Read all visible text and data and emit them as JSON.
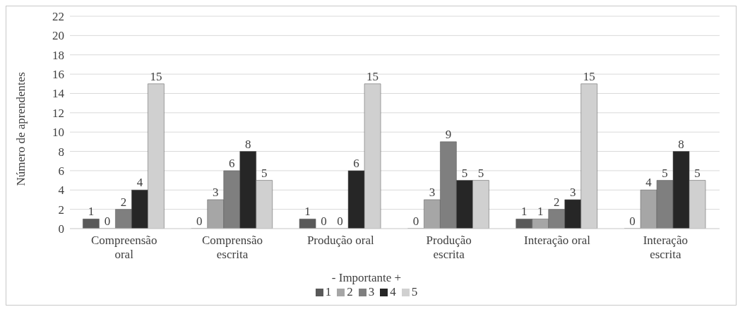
{
  "chart_data": {
    "type": "bar",
    "ylabel": "Número de aprendentes",
    "legend_title": "- Importante +",
    "categories": [
      "Compreensão oral",
      "Comprensão escrita",
      "Produção oral",
      "Produção escrita",
      "Interação oral",
      "Interação escrita"
    ],
    "series": [
      {
        "name": "1",
        "color": "#595959",
        "values": [
          1,
          0,
          1,
          0,
          1,
          0
        ]
      },
      {
        "name": "2",
        "color": "#a6a6a6",
        "values": [
          0,
          3,
          0,
          3,
          1,
          4
        ]
      },
      {
        "name": "3",
        "color": "#7f7f7f",
        "values": [
          2,
          6,
          0,
          9,
          2,
          5
        ]
      },
      {
        "name": "4",
        "color": "#262626",
        "values": [
          4,
          8,
          6,
          5,
          3,
          8
        ]
      },
      {
        "name": "5",
        "color": "#d0d0d0",
        "values": [
          15,
          5,
          15,
          5,
          15,
          5
        ]
      }
    ],
    "ylim": [
      0,
      22
    ],
    "yticks": [
      0,
      2,
      4,
      6,
      8,
      10,
      12,
      14,
      16,
      18,
      20,
      22
    ],
    "grid": "y",
    "data_labels": true,
    "legend": "bottom"
  }
}
